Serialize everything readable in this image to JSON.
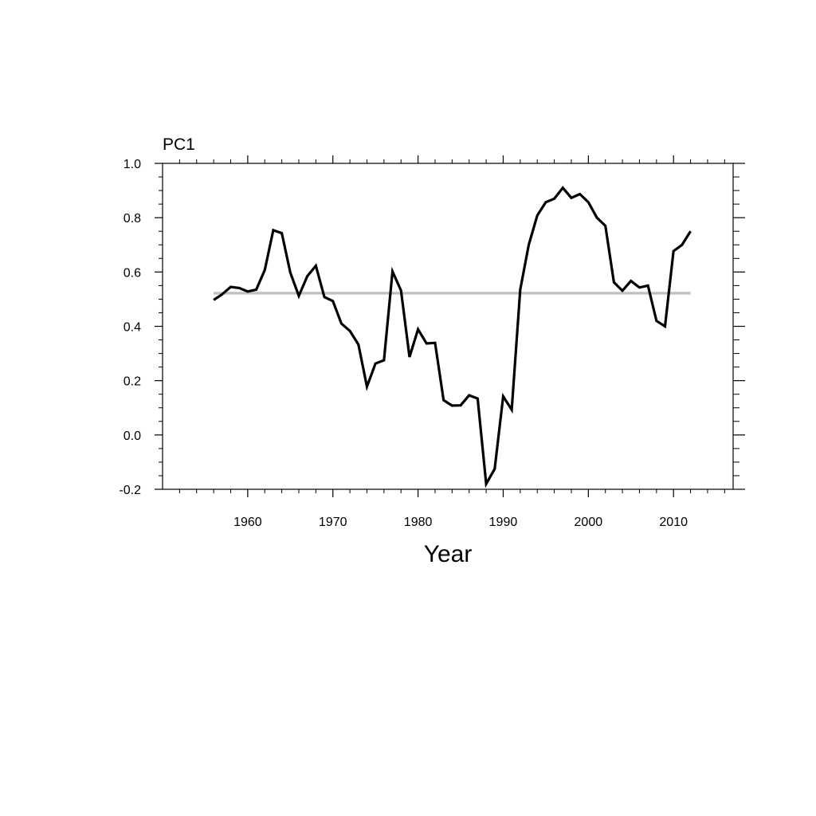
{
  "chart_data": {
    "type": "line",
    "title": "PC1",
    "xlabel": "Year",
    "ylabel": "",
    "xlim": [
      1950,
      2017
    ],
    "ylim": [
      -0.2,
      1.0
    ],
    "x_ticks": [
      1960,
      1970,
      1980,
      1990,
      2000,
      2010
    ],
    "x_tick_labels": [
      "1960",
      "1970",
      "1980",
      "1990",
      "2000",
      "2010"
    ],
    "y_ticks": [
      -0.2,
      0.0,
      0.2,
      0.4,
      0.6,
      0.8,
      1.0
    ],
    "y_tick_labels": [
      "-0.2",
      "0.0",
      "0.2",
      "0.4",
      "0.6",
      "0.8",
      "1.0"
    ],
    "grid": false,
    "series": [
      {
        "color": "#000000",
        "x": [
          1956,
          1957,
          1958,
          1959,
          1960,
          1961,
          1962,
          1963,
          1964,
          1965,
          1966,
          1967,
          1968,
          1969,
          1970,
          1971,
          1972,
          1973,
          1974,
          1975,
          1976,
          1977,
          1978,
          1979,
          1980,
          1981,
          1982,
          1983,
          1984,
          1985,
          1986,
          1987,
          1988,
          1989,
          1990,
          1991,
          1992,
          1993,
          1994,
          1995,
          1996,
          1997,
          1998,
          1999,
          2000,
          2001,
          2002,
          2003,
          2004,
          2005,
          2006,
          2007,
          2008,
          2009,
          2010,
          2011,
          2012
        ],
        "values": [
          0.497,
          0.518,
          0.545,
          0.541,
          0.528,
          0.535,
          0.607,
          0.754,
          0.743,
          0.598,
          0.512,
          0.585,
          0.623,
          0.508,
          0.493,
          0.41,
          0.383,
          0.333,
          0.178,
          0.263,
          0.275,
          0.602,
          0.532,
          0.287,
          0.389,
          0.337,
          0.339,
          0.128,
          0.108,
          0.109,
          0.146,
          0.134,
          -0.18,
          -0.125,
          0.142,
          0.093,
          0.535,
          0.7,
          0.808,
          0.857,
          0.87,
          0.91,
          0.873,
          0.887,
          0.857,
          0.8,
          0.77,
          0.562,
          0.531,
          0.567,
          0.543,
          0.55,
          0.42,
          0.4,
          0.677,
          0.7,
          0.75
        ]
      },
      {
        "color": "#c0c0c0",
        "x": [
          1956,
          2012
        ],
        "values": [
          0.522,
          0.522
        ]
      }
    ]
  }
}
